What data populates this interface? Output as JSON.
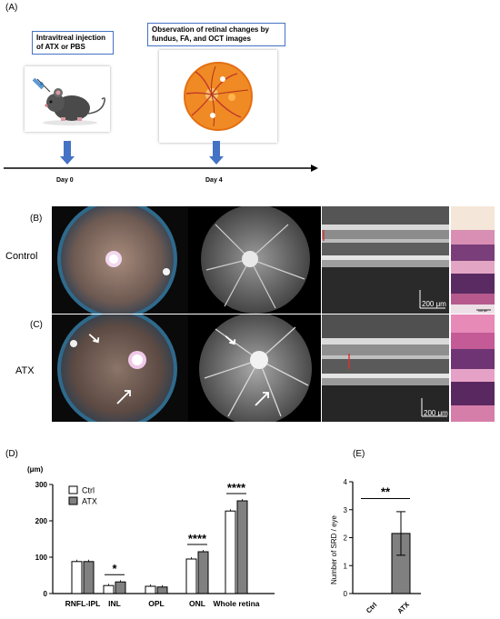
{
  "panel_labels": {
    "a": "(A)",
    "b": "(B)",
    "c": "(C)",
    "d": "(D)",
    "e": "(E)"
  },
  "timeline": {
    "step1_text": "Intravitreal injection of  ATX or PBS",
    "step1_line1": "Intravitreal injection",
    "step1_line2": "of  ATX or PBS",
    "step2_line1": "Observation of retinal changes by",
    "step2_line2": "fundus, FA, and OCT images",
    "day0": "Day 0",
    "day4": "Day 4"
  },
  "image_rows": {
    "control_label": "Control",
    "atx_label": "ATX",
    "scale_bar": "200 μm",
    "histo_scale": "100 μm"
  },
  "colors": {
    "ctrl_bar": "#ffffff",
    "atx_bar": "#808080",
    "arrow_blue": "#4472c4"
  },
  "chart_data": [
    {
      "type": "bar",
      "panel": "D",
      "ylabel": "(μm)",
      "ylim": [
        0,
        300
      ],
      "yticks": [
        0,
        100,
        200,
        300
      ],
      "categories": [
        "RNFL-IPL",
        "INL",
        "OPL",
        "ONL",
        "Whole retina"
      ],
      "series": [
        {
          "name": "Ctrl",
          "values": [
            88,
            22,
            20,
            95,
            227
          ]
        },
        {
          "name": "ATX",
          "values": [
            88,
            32,
            18,
            115,
            255
          ]
        }
      ],
      "significance": {
        "INL": "*",
        "ONL": "****",
        "Whole retina": "****"
      },
      "legend": "top-left"
    },
    {
      "type": "bar",
      "panel": "E",
      "ylabel": "Number of SRD / eye",
      "ylim": [
        0,
        4
      ],
      "yticks": [
        0,
        1,
        2,
        3,
        4
      ],
      "categories": [
        "Ctrl",
        "ATX"
      ],
      "values": [
        0,
        2.15
      ],
      "error": [
        0,
        0.78
      ],
      "significance": "**"
    }
  ]
}
